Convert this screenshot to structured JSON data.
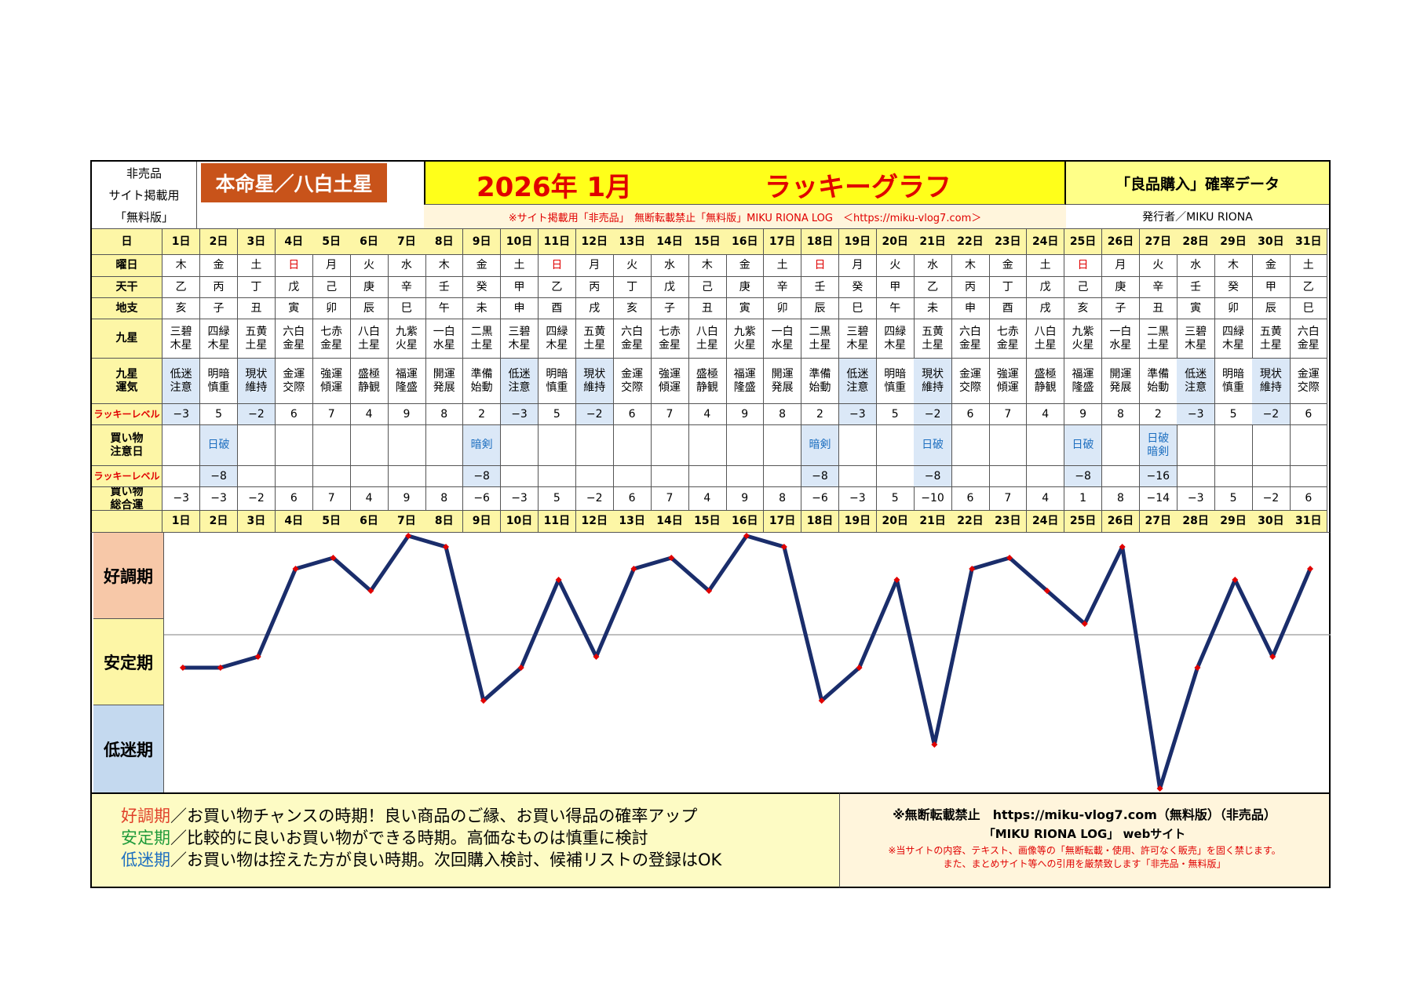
{
  "header": {
    "nonsale_lines": [
      "非売品",
      "サイト掲載用",
      "「無料版」"
    ],
    "honmei_label": "本命星／八白土星",
    "year_month": "2026年 1月",
    "graph_title": "ラッキーグラフ",
    "data_label": "「良品購入」確率データ",
    "notice_line": "※サイト掲載用「非売品」　無断転載禁止「無料版」MIKU RIONA LOG　＜https://miku-vlog7.com＞",
    "publisher": "発行者／MIKU RIONA"
  },
  "row_labels": {
    "day": "日",
    "weekday": "曜日",
    "tenkan": "天干",
    "chishi": "地支",
    "kyusei": "九星",
    "kyusei_unki": "九星\n運気",
    "lucky_level": "ラッキーレベル",
    "shopping_caution": "買い物\n注意日",
    "lucky_level2": "ラッキーレベル",
    "shopping_total": "買い物\n総合運"
  },
  "days": [
    "1日",
    "2日",
    "3日",
    "4日",
    "5日",
    "6日",
    "7日",
    "8日",
    "9日",
    "10日",
    "11日",
    "12日",
    "13日",
    "14日",
    "15日",
    "16日",
    "17日",
    "18日",
    "19日",
    "20日",
    "21日",
    "22日",
    "23日",
    "24日",
    "25日",
    "26日",
    "27日",
    "28日",
    "29日",
    "30日",
    "31日"
  ],
  "weekdays": [
    "木",
    "金",
    "土",
    "日",
    "月",
    "火",
    "水",
    "木",
    "金",
    "土",
    "日",
    "月",
    "火",
    "水",
    "木",
    "金",
    "土",
    "日",
    "月",
    "火",
    "水",
    "木",
    "金",
    "土",
    "日",
    "月",
    "火",
    "水",
    "木",
    "金",
    "土"
  ],
  "tenkan": [
    "乙",
    "丙",
    "丁",
    "戊",
    "己",
    "庚",
    "辛",
    "壬",
    "癸",
    "甲",
    "乙",
    "丙",
    "丁",
    "戊",
    "己",
    "庚",
    "辛",
    "壬",
    "癸",
    "甲",
    "乙",
    "丙",
    "丁",
    "戊",
    "己",
    "庚",
    "辛",
    "壬",
    "癸",
    "甲",
    "乙"
  ],
  "chishi": [
    "亥",
    "子",
    "丑",
    "寅",
    "卯",
    "辰",
    "巳",
    "午",
    "未",
    "申",
    "酉",
    "戌",
    "亥",
    "子",
    "丑",
    "寅",
    "卯",
    "辰",
    "巳",
    "午",
    "未",
    "申",
    "酉",
    "戌",
    "亥",
    "子",
    "丑",
    "寅",
    "卯",
    "辰",
    "巳"
  ],
  "kyusei": [
    "三碧\n木星",
    "四緑\n木星",
    "五黄\n土星",
    "六白\n金星",
    "七赤\n金星",
    "八白\n土星",
    "九紫\n火星",
    "一白\n水星",
    "二黒\n土星",
    "三碧\n木星",
    "四緑\n木星",
    "五黄\n土星",
    "六白\n金星",
    "七赤\n金星",
    "八白\n土星",
    "九紫\n火星",
    "一白\n水星",
    "二黒\n土星",
    "三碧\n木星",
    "四緑\n木星",
    "五黄\n土星",
    "六白\n金星",
    "七赤\n金星",
    "八白\n土星",
    "九紫\n火星",
    "一白\n水星",
    "二黒\n土星",
    "三碧\n木星",
    "四緑\n木星",
    "五黄\n土星",
    "六白\n金星"
  ],
  "unki": [
    "低迷\n注意",
    "明暗\n慎重",
    "現状\n維持",
    "金運\n交際",
    "強運\n傾運",
    "盛極\n静観",
    "福運\n隆盛",
    "開運\n発展",
    "準備\n始動",
    "低迷\n注意",
    "明暗\n慎重",
    "現状\n維持",
    "金運\n交際",
    "強運\n傾運",
    "盛極\n静観",
    "福運\n隆盛",
    "開運\n発展",
    "準備\n始動",
    "低迷\n注意",
    "明暗\n慎重",
    "現状\n維持",
    "金運\n交際",
    "強運\n傾運",
    "盛極\n静観",
    "福運\n隆盛",
    "開運\n発展",
    "準備\n始動",
    "低迷\n注意",
    "明暗\n慎重",
    "現状\n維持",
    "金運\n交際"
  ],
  "lucky_level": [
    "−3",
    "5",
    "−2",
    "6",
    "7",
    "4",
    "9",
    "8",
    "2",
    "−3",
    "5",
    "−2",
    "6",
    "7",
    "4",
    "9",
    "8",
    "2",
    "−3",
    "5",
    "−2",
    "6",
    "7",
    "4",
    "9",
    "8",
    "2",
    "−3",
    "5",
    "−2",
    "6"
  ],
  "caution": [
    "",
    "日破",
    "",
    "",
    "",
    "",
    "",
    "",
    "暗剣",
    "",
    "",
    "",
    "",
    "",
    "",
    "",
    "",
    "暗剣",
    "",
    "",
    "日破",
    "",
    "",
    "",
    "日破",
    "",
    "日破\n暗剣",
    "",
    "",
    "",
    ""
  ],
  "lucky_level2": [
    "",
    "−8",
    "",
    "",
    "",
    "",
    "",
    "",
    "−8",
    "",
    "",
    "",
    "",
    "",
    "",
    "",
    "",
    "−8",
    "",
    "",
    "−8",
    "",
    "",
    "",
    "−8",
    "",
    "−16",
    "",
    "",
    "",
    ""
  ],
  "total": [
    "−3",
    "−3",
    "−2",
    "6",
    "7",
    "4",
    "9",
    "8",
    "−6",
    "−3",
    "5",
    "−2",
    "6",
    "7",
    "4",
    "9",
    "8",
    "−6",
    "−3",
    "5",
    "−10",
    "6",
    "7",
    "4",
    "1",
    "8",
    "−14",
    "−3",
    "5",
    "−2",
    "6"
  ],
  "zones": [
    "好調期",
    "安定期",
    "低迷期"
  ],
  "legend": {
    "good_label": "好調期",
    "good_text": "／お買い物チャンスの時期！良い商品のご縁、お買い得品の確率アップ",
    "stable_label": "安定期",
    "stable_text": "／比較的に良いお買い物ができる時期。高価なものは慎重に検討",
    "low_label": "低迷期",
    "low_text": "／お買い物は控えた方が良い時期。次回購入検討、候補リストの登録はOK"
  },
  "footer": {
    "line1": "※無断転載禁止　https://miku-vlog7.com（無料版）（非売品）",
    "line2": "「MIKU RIONA LOG」 webサイト",
    "line3": "※当サイトの内容、テキスト、画像等の「無断転載・使用、許可なく販売」を固く禁じます。",
    "line4": "また、まとめサイト等への引用を厳禁致します「非売品・無料版」"
  },
  "colors": {
    "line": "#1a2d6b",
    "marker": "#e00000",
    "zone_good": "#f7c8a8",
    "zone_stable": "#fdf6a6",
    "zone_low": "#c4d9ef",
    "honmei_bg": "#c8531a",
    "title_bg": "#ffff1a"
  },
  "chart_data": {
    "type": "line",
    "x": [
      1,
      2,
      3,
      4,
      5,
      6,
      7,
      8,
      9,
      10,
      11,
      12,
      13,
      14,
      15,
      16,
      17,
      18,
      19,
      20,
      21,
      22,
      23,
      24,
      25,
      26,
      27,
      28,
      29,
      30,
      31
    ],
    "values": [
      -3,
      -3,
      -2,
      6,
      7,
      4,
      9,
      8,
      -6,
      -3,
      5,
      -2,
      6,
      7,
      4,
      9,
      8,
      -6,
      -3,
      5,
      -10,
      6,
      7,
      4,
      1,
      8,
      -14,
      -3,
      5,
      -2,
      6
    ],
    "ylim": [
      -14,
      9
    ],
    "reference_line": 0,
    "grid": false
  }
}
